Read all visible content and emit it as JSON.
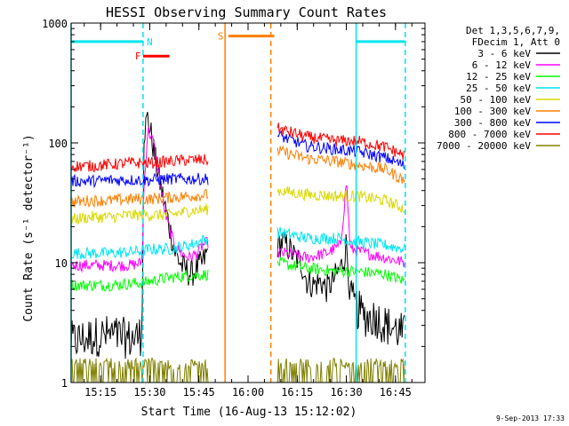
{
  "chart_data": {
    "type": "line",
    "title": "HESSI Observing Summary Count Rates",
    "xlabel": "Start Time (16-Aug-13 15:12:02)",
    "ylabel": "Count Rate (s⁻¹ detector⁻¹)",
    "y_scale": "log",
    "ylim": [
      1,
      1000
    ],
    "xlim_hours_of_day": [
      15.1,
      16.9
    ],
    "x_tick_labels": [
      "15:15",
      "15:30",
      "15:45",
      "16:00",
      "16:15",
      "16:30",
      "16:45"
    ],
    "y_tick_labels": [
      "1",
      "10",
      "100",
      "1000"
    ],
    "legend_header": [
      "Det 1,3,5,6,7,9,",
      "FDecim 1, Att 0"
    ],
    "legend_position": "right of plot",
    "timestamp": "9-Sep-2013 17:33",
    "vertical_lines": [
      {
        "time": 15.1,
        "color": "#00e5ee",
        "style": "solid"
      },
      {
        "time": 15.466,
        "color": "#00e5ee",
        "style": "dashed"
      },
      {
        "time": 15.883,
        "color": "#ff7f00",
        "style": "solid"
      },
      {
        "time": 16.116,
        "color": "#ff7f00",
        "style": "dashed"
      },
      {
        "time": 16.55,
        "color": "#00e5ee",
        "style": "solid"
      },
      {
        "time": 16.8,
        "color": "#00e5ee",
        "style": "dashed"
      }
    ],
    "flag_bars": [
      {
        "label": "N",
        "color": "#00e5ee",
        "from": 15.1,
        "to": 15.466,
        "level": 700,
        "label_time": 15.5
      },
      {
        "label": "F",
        "color": "#ff0000",
        "from": 15.466,
        "to": 15.6,
        "level": 530,
        "label_time": 15.44
      },
      {
        "label": "S",
        "color": "#ff7f00",
        "from": 15.9,
        "to": 16.133,
        "level": 780,
        "label_time": 15.86
      },
      {
        "label": "",
        "color": "#00e5ee",
        "from": 16.55,
        "to": 16.8,
        "level": 700,
        "label_time": null
      }
    ],
    "series": [
      {
        "name": "3 - 6 keV",
        "color": "#000000",
        "points": [
          [
            15.1,
            2.2
          ],
          [
            15.2,
            2.4
          ],
          [
            15.3,
            2.5
          ],
          [
            15.4,
            2.3
          ],
          [
            15.46,
            2.5
          ],
          [
            15.47,
            120
          ],
          [
            15.49,
            165
          ],
          [
            15.51,
            110
          ],
          [
            15.53,
            70
          ],
          [
            15.56,
            40
          ],
          [
            15.6,
            20
          ],
          [
            15.63,
            12
          ],
          [
            15.67,
            9
          ],
          [
            15.71,
            8
          ],
          [
            15.74,
            9
          ],
          [
            15.77,
            10
          ],
          [
            15.8,
            13
          ],
          [
            16.15,
            14
          ],
          [
            16.18,
            15
          ],
          [
            16.21,
            13
          ],
          [
            16.24,
            11
          ],
          [
            16.27,
            10
          ],
          [
            16.3,
            7
          ],
          [
            16.33,
            6.5
          ],
          [
            16.37,
            7
          ],
          [
            16.4,
            6
          ],
          [
            16.43,
            7
          ],
          [
            16.47,
            9
          ],
          [
            16.49,
            11
          ],
          [
            16.5,
            15
          ],
          [
            16.52,
            5
          ],
          [
            16.56,
            4
          ],
          [
            16.6,
            3.5
          ],
          [
            16.65,
            3.5
          ],
          [
            16.7,
            3
          ],
          [
            16.75,
            2.8
          ],
          [
            16.8,
            2.5
          ]
        ]
      },
      {
        "name": "6 - 12 keV",
        "color": "#ff00ff",
        "points": [
          [
            15.1,
            9.5
          ],
          [
            15.2,
            9.5
          ],
          [
            15.3,
            9.5
          ],
          [
            15.4,
            9.5
          ],
          [
            15.46,
            10
          ],
          [
            15.47,
            40
          ],
          [
            15.49,
            130
          ],
          [
            15.52,
            100
          ],
          [
            15.55,
            50
          ],
          [
            15.58,
            25
          ],
          [
            15.62,
            15
          ],
          [
            15.66,
            12
          ],
          [
            15.7,
            11
          ],
          [
            15.74,
            12
          ],
          [
            15.77,
            14
          ],
          [
            15.8,
            15
          ],
          [
            16.15,
            12
          ],
          [
            16.2,
            12
          ],
          [
            16.3,
            11
          ],
          [
            16.4,
            12
          ],
          [
            16.47,
            14
          ],
          [
            16.49,
            30
          ],
          [
            16.5,
            50
          ],
          [
            16.52,
            13
          ],
          [
            16.6,
            12
          ],
          [
            16.7,
            11
          ],
          [
            16.8,
            10
          ]
        ]
      },
      {
        "name": "12 - 25 keV",
        "color": "#00ff00",
        "points": [
          [
            15.1,
            6.5
          ],
          [
            15.2,
            6.5
          ],
          [
            15.3,
            6.5
          ],
          [
            15.46,
            6.8
          ],
          [
            15.5,
            7
          ],
          [
            15.6,
            7.5
          ],
          [
            15.7,
            7.8
          ],
          [
            15.8,
            8
          ],
          [
            16.15,
            10
          ],
          [
            16.3,
            9
          ],
          [
            16.45,
            8.5
          ],
          [
            16.55,
            8.5
          ],
          [
            16.7,
            8
          ],
          [
            16.8,
            7
          ]
        ]
      },
      {
        "name": "25 - 50 keV",
        "color": "#00e5ee",
        "points": [
          [
            15.1,
            12
          ],
          [
            15.2,
            12
          ],
          [
            15.3,
            12
          ],
          [
            15.46,
            12.5
          ],
          [
            15.5,
            13
          ],
          [
            15.6,
            13
          ],
          [
            15.7,
            14
          ],
          [
            15.8,
            16
          ],
          [
            16.15,
            18
          ],
          [
            16.3,
            16
          ],
          [
            16.45,
            16
          ],
          [
            16.55,
            15
          ],
          [
            16.7,
            14
          ],
          [
            16.8,
            13
          ]
        ]
      },
      {
        "name": "50 - 100 keV",
        "color": "#d9d900",
        "points": [
          [
            15.1,
            23
          ],
          [
            15.2,
            24
          ],
          [
            15.3,
            24
          ],
          [
            15.4,
            25
          ],
          [
            15.5,
            25
          ],
          [
            15.6,
            25
          ],
          [
            15.7,
            27
          ],
          [
            15.8,
            28
          ],
          [
            16.15,
            40
          ],
          [
            16.3,
            37
          ],
          [
            16.45,
            36
          ],
          [
            16.55,
            36
          ],
          [
            16.7,
            33
          ],
          [
            16.8,
            28
          ]
        ]
      },
      {
        "name": "100 - 300 keV",
        "color": "#ff7f00",
        "points": [
          [
            15.1,
            32
          ],
          [
            15.2,
            33
          ],
          [
            15.3,
            33
          ],
          [
            15.4,
            34
          ],
          [
            15.5,
            34
          ],
          [
            15.6,
            35
          ],
          [
            15.7,
            36
          ],
          [
            15.8,
            37
          ],
          [
            16.15,
            86
          ],
          [
            16.3,
            74
          ],
          [
            16.45,
            70
          ],
          [
            16.55,
            66
          ],
          [
            16.7,
            60
          ],
          [
            16.8,
            48
          ]
        ]
      },
      {
        "name": "300 - 800 keV",
        "color": "#0000ff",
        "points": [
          [
            15.1,
            48
          ],
          [
            15.2,
            48
          ],
          [
            15.3,
            49
          ],
          [
            15.4,
            49
          ],
          [
            15.5,
            49
          ],
          [
            15.6,
            50
          ],
          [
            15.7,
            50
          ],
          [
            15.8,
            50
          ],
          [
            16.15,
            116
          ],
          [
            16.3,
            94
          ],
          [
            16.45,
            88
          ],
          [
            16.55,
            85
          ],
          [
            16.7,
            75
          ],
          [
            16.8,
            64
          ]
        ]
      },
      {
        "name": "800 - 7000 keV",
        "color": "#ff0000",
        "points": [
          [
            15.1,
            64
          ],
          [
            15.2,
            64
          ],
          [
            15.3,
            66
          ],
          [
            15.4,
            68
          ],
          [
            15.5,
            68
          ],
          [
            15.6,
            70
          ],
          [
            15.7,
            72
          ],
          [
            15.8,
            72
          ],
          [
            16.15,
            132
          ],
          [
            16.3,
            112
          ],
          [
            16.45,
            104
          ],
          [
            16.55,
            104
          ],
          [
            16.7,
            92
          ],
          [
            16.8,
            78
          ]
        ]
      },
      {
        "name": "7000 - 20000 keV",
        "color": "#808000",
        "points": [
          [
            15.1,
            1.3
          ],
          [
            15.2,
            1.3
          ],
          [
            15.3,
            1.3
          ],
          [
            15.46,
            1.3
          ],
          [
            15.55,
            1.0
          ],
          [
            15.62,
            1.3
          ],
          [
            15.7,
            1.3
          ],
          [
            15.8,
            1.3
          ],
          [
            16.15,
            1.3
          ],
          [
            16.3,
            1.3
          ],
          [
            16.4,
            1.3
          ],
          [
            16.55,
            1.3
          ],
          [
            16.7,
            1.3
          ],
          [
            16.8,
            1.3
          ]
        ]
      }
    ]
  }
}
